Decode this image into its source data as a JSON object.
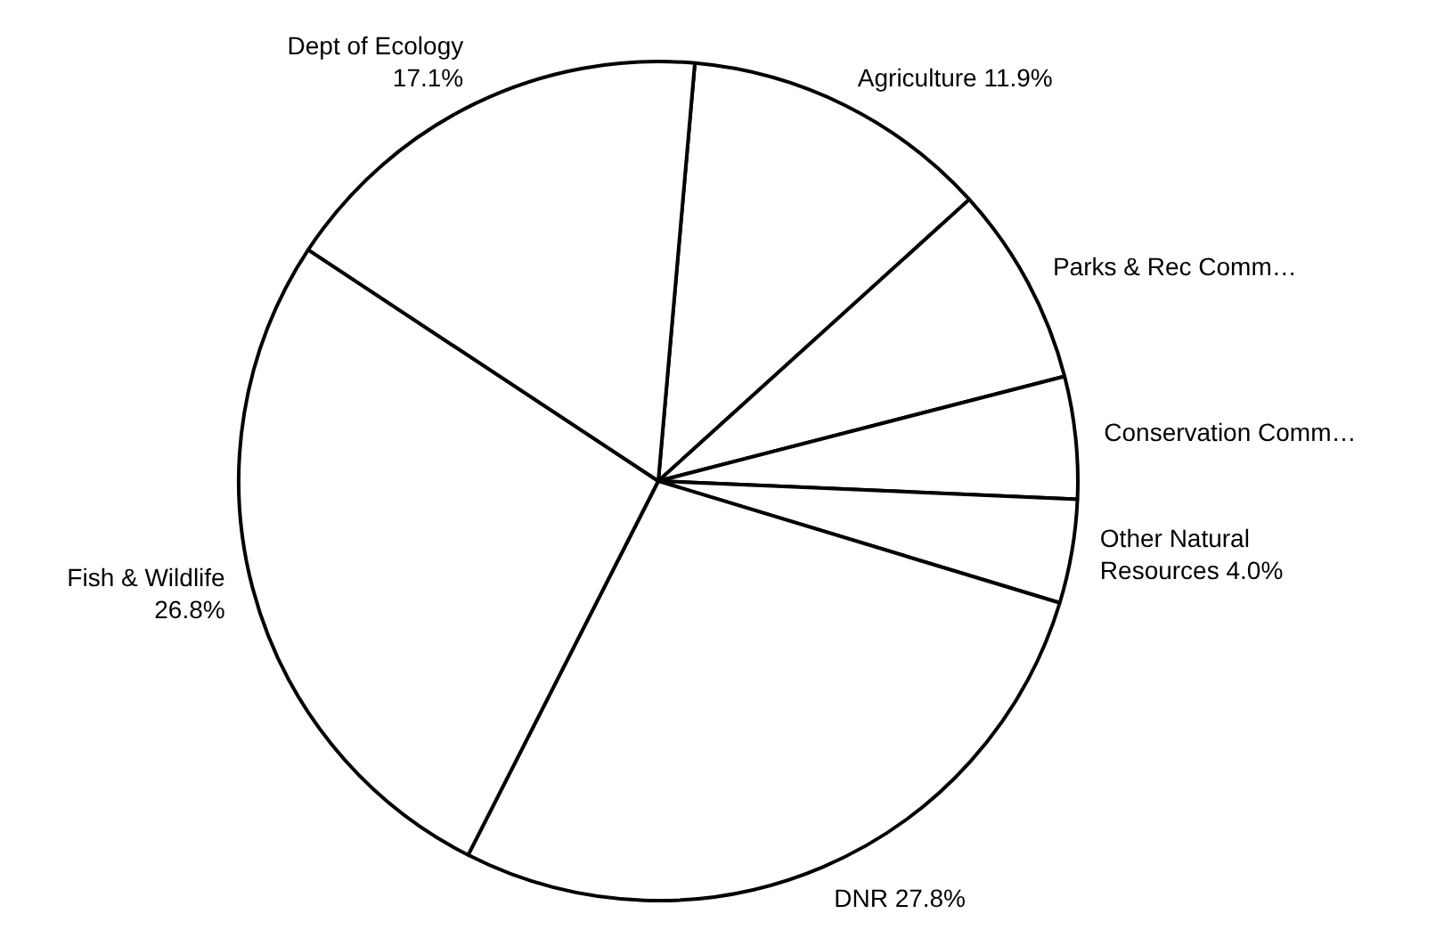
{
  "chart_data": {
    "type": "pie",
    "categories": [
      "Agriculture",
      "Parks & Rec Comm…",
      "Conservation Comm…",
      "Other Natural Resources",
      "DNR",
      "Fish & Wildlife",
      "Dept of Ecology"
    ],
    "values": [
      11.9,
      7.7,
      4.7,
      4.0,
      27.8,
      26.8,
      17.1
    ],
    "colors": [
      "#ffffff",
      "#ffffff",
      "#ffffff",
      "#ffffff",
      "#ffffff",
      "#ffffff",
      "#ffffff"
    ],
    "value_labels": [
      "11.9%",
      null,
      null,
      "4.0%",
      "27.8%",
      "26.8%",
      "17.1%"
    ],
    "legend": false
  }
}
